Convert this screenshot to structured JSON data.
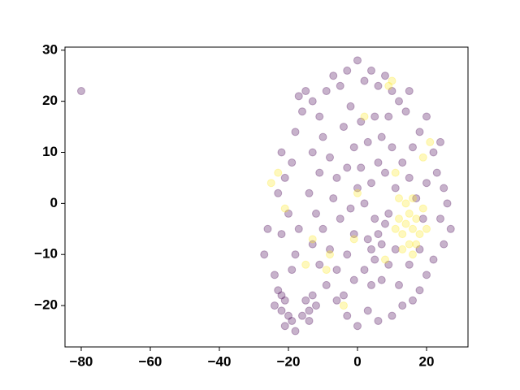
{
  "chart_data": {
    "type": "scatter",
    "xlim": [
      -84.7,
      32
    ],
    "ylim": [
      -28.1,
      30.6
    ],
    "xticks": [
      {
        "value": -80,
        "label": "−80"
      },
      {
        "value": -60,
        "label": "−60"
      },
      {
        "value": -40,
        "label": "−40"
      },
      {
        "value": -20,
        "label": "−20"
      },
      0,
      20
    ],
    "yticks": [
      {
        "value": -20,
        "label": "−20"
      },
      {
        "value": -10,
        "label": "−10"
      },
      0,
      10,
      20,
      30
    ],
    "alpha": 0.3,
    "series": [
      {
        "color": "#440154",
        "x": [
          -80,
          -26,
          -27,
          -22,
          -22,
          -23,
          -21,
          -24,
          -20,
          -22,
          -21,
          -19,
          -18,
          -15,
          -14,
          -13,
          -16,
          -12,
          -14,
          -19,
          -24,
          -18,
          -17,
          -20,
          -23,
          -21,
          -19,
          -22,
          -18,
          -16,
          -17,
          -15,
          -13,
          -11,
          -9,
          -7,
          -5,
          -3,
          0,
          2,
          4,
          6,
          8,
          10,
          12,
          14,
          15,
          18,
          20,
          22,
          24,
          23,
          25,
          26,
          24,
          27,
          25,
          22,
          20,
          18,
          16,
          13,
          10,
          6,
          3,
          0,
          -3,
          -6,
          -9,
          -11,
          -13,
          -10,
          -12,
          -14,
          -11,
          -13,
          -10,
          -8,
          -6,
          -7,
          -5,
          -8,
          -6,
          -3,
          -1,
          -2,
          0,
          -3,
          -1,
          -4,
          -2,
          1,
          3,
          5,
          7,
          6,
          4,
          2,
          5,
          3,
          4,
          6,
          7,
          5,
          8,
          2,
          4,
          7,
          9,
          11,
          9,
          11,
          8,
          13,
          10,
          15,
          17,
          19,
          18,
          15,
          12,
          1,
          -1,
          -4,
          9,
          16,
          20
        ],
        "values": [
          22,
          -5,
          -10,
          -6,
          -18,
          -17,
          -19,
          -20,
          -22,
          -21,
          -24,
          -23,
          -25,
          -19,
          -21,
          -18,
          -22,
          -20,
          -23,
          -13,
          -14,
          -10,
          -5,
          -2,
          2,
          5,
          8,
          10,
          14,
          18,
          21,
          22,
          20,
          17,
          22,
          25,
          23,
          26,
          28,
          24,
          26,
          23,
          25,
          22,
          20,
          18,
          22,
          14,
          17,
          10,
          12,
          6,
          3,
          0,
          -3,
          -5,
          -8,
          -11,
          -14,
          -17,
          -19,
          -20,
          -22,
          -23,
          -21,
          -24,
          -22,
          -19,
          -16,
          -12,
          -8,
          -5,
          -2,
          2,
          6,
          10,
          13,
          9,
          5,
          1,
          -3,
          -9,
          -13,
          -10,
          -6,
          -1,
          3,
          7,
          11,
          15,
          19,
          16,
          12,
          17,
          13,
          8,
          4,
          0,
          -3,
          -7,
          -9,
          -6,
          -8,
          -11,
          -4,
          -13,
          -16,
          -15,
          -12,
          -9,
          -2,
          3,
          6,
          8,
          11,
          5,
          1,
          -3,
          -9,
          -12,
          -16,
          7,
          -15,
          -18,
          17,
          11,
          4
        ]
      },
      {
        "color": "#fde725",
        "x": [
          15,
          16,
          14,
          13,
          17,
          18,
          12,
          15,
          16,
          14,
          19,
          13,
          17,
          20,
          11,
          16,
          12,
          -23,
          -25,
          -21,
          -15,
          -13,
          -9,
          -8,
          -1,
          0,
          2,
          9,
          10,
          21,
          19,
          -4,
          11,
          8
        ],
        "values": [
          -2,
          -5,
          -4,
          -6,
          -3,
          -6,
          -3,
          -8,
          1,
          0,
          -1,
          -9,
          -8,
          -5,
          -5,
          -10,
          1,
          6,
          4,
          -1,
          -12,
          -7,
          -13,
          -10,
          -7,
          2,
          17,
          23,
          24,
          12,
          9,
          -20,
          6,
          -11
        ]
      }
    ]
  }
}
